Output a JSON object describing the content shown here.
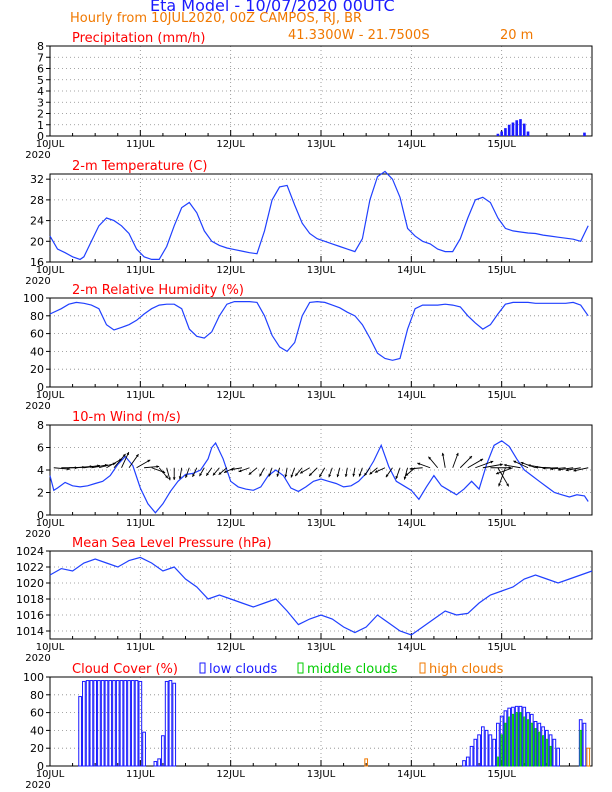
{
  "header": {
    "title": "Eta Model - 10/07/2020 00UTC",
    "subtitle": "Hourly from 10JUL2020, 00Z  CAMPOS, RJ, BR",
    "location": "41.3300W - 21.7500S",
    "elevation": "20  m",
    "title_color": "#1a1aff",
    "subtitle_color": "#f07800"
  },
  "x_axis": {
    "range_hours": [
      0,
      144
    ],
    "tick_labels": [
      "10JUL",
      "11JUL",
      "12JUL",
      "13JUL",
      "14JUL",
      "15JUL"
    ],
    "tick_hours": [
      0,
      24,
      48,
      72,
      96,
      120
    ],
    "year_label": "2020"
  },
  "colors": {
    "series": "#2040ff",
    "label": "#ff0000",
    "axis": "#000000",
    "grid": "#888888",
    "low": "#1a1aff",
    "middle": "#00cc00",
    "high": "#f07800"
  },
  "chart_data": [
    {
      "id": "precip",
      "type": "bar",
      "title": "Precipitation (mm/h)",
      "ylim": [
        0,
        8
      ],
      "yticks": [
        0,
        1,
        2,
        3,
        4,
        5,
        6,
        7,
        8
      ],
      "x_hours": [
        119,
        120,
        121,
        122,
        123,
        124,
        125,
        126,
        127,
        142
      ],
      "values": [
        0.2,
        0.4,
        0.7,
        1.0,
        1.2,
        1.4,
        1.5,
        1.1,
        0.4,
        0.3
      ]
    },
    {
      "id": "temp",
      "type": "line",
      "title": "2-m Temperature (C)",
      "ylim": [
        16,
        33
      ],
      "yticks": [
        16,
        20,
        24,
        28,
        32
      ],
      "x_hours": [
        0,
        2,
        4,
        6,
        8,
        9,
        11,
        13,
        15,
        17,
        19,
        21,
        23,
        25,
        27,
        29,
        31,
        33,
        35,
        37,
        39,
        41,
        43,
        45,
        47,
        49,
        51,
        53,
        55,
        57,
        59,
        61,
        63,
        65,
        67,
        69,
        71,
        73,
        75,
        77,
        79,
        81,
        83,
        85,
        87,
        89,
        91,
        93,
        95,
        97,
        99,
        101,
        103,
        105,
        107,
        109,
        111,
        113,
        115,
        117,
        119,
        121,
        123,
        125,
        127,
        129,
        131,
        133,
        135,
        137,
        139,
        141,
        143
      ],
      "values": [
        21.0,
        18.5,
        17.8,
        17.0,
        16.5,
        17.0,
        20.0,
        23.0,
        24.5,
        24.0,
        23.0,
        21.5,
        18.5,
        17.0,
        16.5,
        16.5,
        19.0,
        23.0,
        26.5,
        27.5,
        25.5,
        22.0,
        20.0,
        19.2,
        18.7,
        18.4,
        18.1,
        17.8,
        17.6,
        22.0,
        28.0,
        30.5,
        30.8,
        27.0,
        23.5,
        21.5,
        20.5,
        20.0,
        19.5,
        19.0,
        18.5,
        18.0,
        20.5,
        28.0,
        32.5,
        33.5,
        32.0,
        28.5,
        22.5,
        21.0,
        20.0,
        19.5,
        18.5,
        18.0,
        18.0,
        20.5,
        24.5,
        28.0,
        28.5,
        27.5,
        24.5,
        22.5,
        22.0,
        21.8,
        21.6,
        21.5,
        21.2,
        21.0,
        20.8,
        20.6,
        20.4,
        20.0,
        23.0
      ]
    },
    {
      "id": "rh",
      "type": "line",
      "title": "2-m Relative Humidity (%)",
      "ylim": [
        0,
        100
      ],
      "yticks": [
        0,
        20,
        40,
        60,
        80,
        100
      ],
      "x_hours": [
        0,
        3,
        5,
        7,
        9,
        11,
        13,
        15,
        17,
        19,
        21,
        23,
        25,
        27,
        29,
        31,
        33,
        35,
        37,
        39,
        41,
        43,
        45,
        47,
        49,
        51,
        53,
        55,
        57,
        59,
        61,
        63,
        65,
        67,
        69,
        71,
        73,
        75,
        77,
        79,
        81,
        83,
        85,
        87,
        89,
        91,
        93,
        95,
        97,
        99,
        101,
        103,
        105,
        107,
        109,
        111,
        113,
        115,
        117,
        119,
        121,
        123,
        125,
        127,
        129,
        131,
        133,
        135,
        137,
        139,
        141,
        143
      ],
      "values": [
        82,
        88,
        93,
        95,
        94,
        92,
        88,
        70,
        64,
        67,
        70,
        75,
        82,
        88,
        92,
        93,
        93,
        88,
        65,
        57,
        55,
        62,
        80,
        93,
        96,
        96,
        96,
        95,
        80,
        58,
        45,
        40,
        50,
        80,
        95,
        96,
        95,
        92,
        89,
        84,
        80,
        70,
        55,
        38,
        32,
        30,
        32,
        65,
        88,
        92,
        92,
        92,
        93,
        92,
        90,
        80,
        72,
        65,
        70,
        82,
        93,
        95,
        95,
        95,
        94,
        94,
        94,
        94,
        94,
        95,
        92,
        80
      ]
    },
    {
      "id": "wind",
      "type": "line",
      "title": "10-m Wind (m/s)",
      "ylim": [
        0,
        8
      ],
      "yticks": [
        0,
        2,
        4,
        6,
        8
      ],
      "x_hours": [
        0,
        1,
        2,
        4,
        6,
        8,
        10,
        12,
        14,
        16,
        18,
        20,
        22,
        24,
        26,
        28,
        30,
        32,
        34,
        36,
        38,
        40,
        42,
        43,
        44,
        46,
        48,
        50,
        52,
        54,
        56,
        58,
        60,
        62,
        64,
        66,
        68,
        70,
        72,
        74,
        76,
        78,
        80,
        82,
        84,
        86,
        88,
        90,
        92,
        94,
        96,
        98,
        100,
        102,
        104,
        106,
        108,
        110,
        112,
        114,
        116,
        118,
        120,
        122,
        124,
        126,
        128,
        130,
        132,
        134,
        136,
        138,
        140,
        142,
        143
      ],
      "values": [
        3.5,
        2.2,
        2.4,
        2.9,
        2.6,
        2.5,
        2.6,
        2.8,
        3.0,
        3.5,
        4.5,
        5.2,
        4.4,
        2.4,
        1.0,
        0.2,
        1.0,
        2.1,
        3.0,
        3.6,
        3.7,
        4.0,
        5.0,
        6.0,
        6.4,
        5.0,
        3.0,
        2.5,
        2.3,
        2.2,
        2.5,
        3.5,
        4.0,
        3.5,
        2.4,
        2.1,
        2.5,
        3.0,
        3.2,
        3.0,
        2.8,
        2.5,
        2.6,
        3.0,
        3.7,
        4.8,
        6.2,
        4.3,
        3.0,
        2.6,
        2.2,
        1.4,
        2.5,
        3.5,
        2.6,
        2.2,
        1.8,
        2.3,
        3.0,
        2.3,
        4.5,
        6.2,
        6.6,
        6.1,
        5.0,
        4.0,
        3.5,
        3.0,
        2.5,
        2.0,
        1.8,
        1.6,
        1.8,
        1.7,
        1.2
      ],
      "vector_hours": [
        1,
        3,
        5,
        7,
        9,
        11,
        13,
        15,
        17,
        19,
        21,
        23,
        25,
        27,
        29,
        31,
        33,
        35,
        37,
        39,
        41,
        43,
        45,
        47,
        49,
        51,
        53,
        55,
        57,
        59,
        61,
        63,
        65,
        67,
        69,
        71,
        73,
        75,
        77,
        79,
        81,
        83,
        85,
        87,
        89,
        91,
        93,
        95,
        97,
        99,
        101,
        103,
        105,
        107,
        109,
        111,
        113,
        115,
        117,
        119,
        121,
        123,
        125,
        127,
        129,
        131,
        133,
        135,
        137,
        139,
        141,
        143
      ],
      "vector_dir_deg": [
        95,
        90,
        88,
        85,
        82,
        80,
        75,
        60,
        40,
        25,
        35,
        60,
        85,
        110,
        140,
        165,
        180,
        190,
        200,
        205,
        210,
        215,
        220,
        230,
        245,
        260,
        250,
        230,
        210,
        200,
        195,
        190,
        200,
        220,
        240,
        225,
        210,
        200,
        195,
        190,
        190,
        200,
        215,
        230,
        245,
        215,
        200,
        195,
        230,
        265,
        290,
        320,
        350,
        20,
        45,
        60,
        70,
        80,
        90,
        150,
        200,
        250,
        280,
        295,
        290,
        280,
        272,
        268,
        265,
        262,
        260,
        258
      ],
      "vector_speed": [
        4.5,
        4.5,
        4.5,
        4.5,
        4.5,
        4.6,
        4.8,
        5.0,
        5.0,
        4.8,
        4.6,
        4.4,
        4.2,
        4.0,
        3.8,
        3.6,
        3.4,
        3.2,
        3.0,
        2.8,
        2.7,
        2.7,
        2.8,
        3.0,
        3.2,
        3.3,
        3.2,
        3.0,
        2.8,
        2.6,
        2.6,
        2.7,
        2.9,
        3.0,
        3.1,
        3.2,
        3.0,
        2.8,
        2.7,
        2.6,
        2.5,
        2.6,
        2.7,
        2.9,
        3.1,
        3.2,
        3.3,
        3.4,
        3.5,
        3.6,
        3.8,
        4.0,
        4.2,
        4.4,
        4.6,
        4.9,
        5.3,
        5.6,
        5.8,
        6.0,
        5.5,
        5.0,
        4.7,
        4.5,
        4.4,
        4.3,
        4.3,
        4.3,
        4.3,
        4.3,
        4.2,
        4.2
      ]
    },
    {
      "id": "mslp",
      "type": "line",
      "title": "Mean Sea Level Pressure (hPa)",
      "ylim": [
        1013,
        1024
      ],
      "yticks": [
        1014,
        1016,
        1018,
        1020,
        1022,
        1024
      ],
      "x_hours": [
        0,
        3,
        6,
        9,
        12,
        15,
        18,
        21,
        24,
        27,
        30,
        33,
        36,
        39,
        42,
        45,
        48,
        51,
        54,
        57,
        60,
        63,
        66,
        69,
        72,
        75,
        78,
        81,
        84,
        87,
        90,
        93,
        96,
        99,
        102,
        105,
        108,
        111,
        114,
        117,
        120,
        123,
        126,
        129,
        132,
        135,
        138,
        141,
        144
      ],
      "values": [
        1021.0,
        1021.8,
        1021.5,
        1022.5,
        1023.0,
        1022.5,
        1022.0,
        1022.8,
        1023.2,
        1022.5,
        1021.5,
        1022.0,
        1020.5,
        1019.5,
        1018.0,
        1018.5,
        1018.0,
        1017.5,
        1017.0,
        1017.5,
        1018.0,
        1016.5,
        1014.8,
        1015.5,
        1016.0,
        1015.5,
        1014.5,
        1013.8,
        1014.5,
        1016.0,
        1015.0,
        1014.0,
        1013.5,
        1014.5,
        1015.5,
        1016.5,
        1016.0,
        1016.2,
        1017.5,
        1018.5,
        1019.0,
        1019.5,
        1020.5,
        1021.0,
        1020.5,
        1020.0,
        1020.5,
        1021.0,
        1021.5
      ]
    },
    {
      "id": "cloud",
      "type": "bar",
      "title": "Cloud Cover (%)",
      "legend": [
        "low clouds",
        "middle clouds",
        "high clouds"
      ],
      "ylim": [
        0,
        100
      ],
      "yticks": [
        0,
        20,
        40,
        60,
        80,
        100
      ],
      "low_hours": [
        8,
        9,
        10,
        11,
        12,
        13,
        14,
        15,
        16,
        17,
        18,
        19,
        20,
        21,
        22,
        23,
        24,
        25,
        28,
        29,
        30,
        31,
        32,
        33,
        110,
        111,
        112,
        113,
        114,
        115,
        116,
        117,
        118,
        119,
        120,
        121,
        122,
        123,
        124,
        125,
        126,
        127,
        128,
        129,
        130,
        131,
        132,
        133,
        134,
        135,
        141,
        142
      ],
      "low_values": [
        78,
        95,
        96,
        96,
        96,
        96,
        96,
        96,
        96,
        96,
        96,
        96,
        96,
        96,
        96,
        96,
        95,
        38,
        5,
        8,
        34,
        95,
        96,
        93,
        6,
        10,
        22,
        30,
        35,
        44,
        40,
        35,
        30,
        48,
        56,
        62,
        65,
        66,
        67,
        67,
        66,
        60,
        58,
        50,
        48,
        44,
        40,
        35,
        30,
        20,
        52,
        48
      ],
      "middle_hours": [
        119,
        120,
        121,
        122,
        123,
        124,
        125,
        126,
        127,
        128,
        129,
        130,
        131,
        132,
        133,
        141
      ],
      "middle_values": [
        10,
        35,
        48,
        55,
        58,
        60,
        60,
        55,
        52,
        48,
        42,
        38,
        34,
        30,
        22,
        40
      ],
      "high_hours": [
        84,
        143
      ],
      "high_values": [
        8,
        20
      ]
    }
  ]
}
